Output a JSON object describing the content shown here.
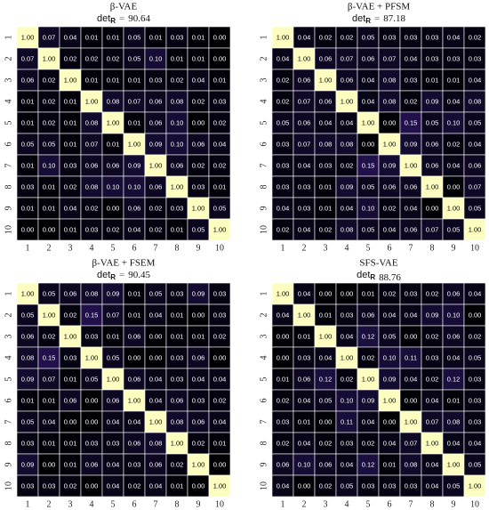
{
  "chart_data": [
    {
      "type": "heatmap",
      "title": "β-VAE",
      "metric_label": "det",
      "metric_subscript": "R",
      "metric_sep": "=",
      "metric_value": 90.64,
      "categories": [
        "1",
        "2",
        "3",
        "4",
        "5",
        "6",
        "7",
        "8",
        "9",
        "10"
      ],
      "colormap": "magma",
      "zlim": [
        0,
        1
      ],
      "values": [
        [
          1.0,
          0.07,
          0.04,
          0.01,
          0.01,
          0.05,
          0.01,
          0.03,
          0.01,
          0.0
        ],
        [
          0.07,
          1.0,
          0.02,
          0.02,
          0.02,
          0.05,
          0.1,
          0.01,
          0.01,
          0.0
        ],
        [
          0.06,
          0.02,
          1.0,
          0.01,
          0.01,
          0.01,
          0.03,
          0.02,
          0.04,
          0.01
        ],
        [
          0.01,
          0.02,
          0.01,
          1.0,
          0.08,
          0.07,
          0.06,
          0.08,
          0.02,
          0.03
        ],
        [
          0.01,
          0.02,
          0.01,
          0.08,
          1.0,
          0.01,
          0.06,
          0.1,
          0.0,
          0.02
        ],
        [
          0.05,
          0.05,
          0.01,
          0.07,
          0.01,
          1.0,
          0.09,
          0.1,
          0.06,
          0.04
        ],
        [
          0.01,
          0.1,
          0.03,
          0.06,
          0.06,
          0.09,
          1.0,
          0.06,
          0.02,
          0.02
        ],
        [
          0.03,
          0.01,
          0.02,
          0.08,
          0.1,
          0.1,
          0.06,
          1.0,
          0.03,
          0.01
        ],
        [
          0.01,
          0.01,
          0.04,
          0.02,
          0.0,
          0.06,
          0.02,
          0.03,
          1.0,
          0.05
        ],
        [
          0.0,
          0.0,
          0.01,
          0.03,
          0.02,
          0.04,
          0.02,
          0.01,
          0.05,
          1.0
        ]
      ],
      "value_labels": [
        [
          "1.00",
          "0.07",
          "0.04",
          "0.01",
          "0.01",
          "0.05",
          "0.01",
          "0.03",
          "0.01",
          "0.00"
        ],
        [
          "0.07",
          "1.00",
          "0.02",
          "0.02",
          "0.02",
          "0.05",
          "0.10",
          "0.01",
          "0.01",
          "0.00"
        ],
        [
          "0.06",
          "0.02",
          "1.00",
          "0.01",
          "0.01",
          "0.01",
          "0.03",
          "0.02",
          "0.04",
          "0.01"
        ],
        [
          "0.01",
          "0.02",
          "0.01",
          "1.00",
          "0.08",
          "0.07",
          "0.06",
          "0.08",
          "0.02",
          "0.03"
        ],
        [
          "0.01",
          "0.02",
          "0.01",
          "0.08",
          "1.00",
          "0.01",
          "0.06",
          "0.10",
          "0.00",
          "0.02"
        ],
        [
          "0.05",
          "0.05",
          "0.01",
          "0.07",
          "0.01",
          "1.00",
          "0.09",
          "0.10",
          "0.06",
          "0.04"
        ],
        [
          "0.01",
          "0.10",
          "0.03",
          "0.06",
          "0.06",
          "0.09",
          "1.00",
          "0.06",
          "0.02",
          "0.02"
        ],
        [
          "0.03",
          "0.01",
          "0.02",
          "0.08",
          "0.10",
          "0.10",
          "0.06",
          "1.00",
          "0.03",
          "0.01"
        ],
        [
          "0.01",
          "0.01",
          "0.04",
          "0.02",
          "0.00",
          "0.06",
          "0.02",
          "0.03",
          "1.00",
          "0.05"
        ],
        [
          "0.00",
          "0.00",
          "0.01",
          "0.03",
          "0.02",
          "0.04",
          "0.02",
          "0.01",
          "0.05",
          "1.00"
        ]
      ]
    },
    {
      "type": "heatmap",
      "title": "β-VAE + PFSM",
      "metric_label": "det",
      "metric_subscript": "R",
      "metric_sep": "=",
      "metric_value": 87.18,
      "categories": [
        "1",
        "2",
        "3",
        "4",
        "5",
        "6",
        "7",
        "8",
        "9",
        "10"
      ],
      "colormap": "magma",
      "zlim": [
        0,
        1
      ],
      "values": [
        [
          1.0,
          0.04,
          0.02,
          0.02,
          0.05,
          0.03,
          0.03,
          0.03,
          0.04,
          0.02
        ],
        [
          0.04,
          1.0,
          0.06,
          0.07,
          0.06,
          0.07,
          0.04,
          0.03,
          0.03,
          0.03
        ],
        [
          0.02,
          0.06,
          1.0,
          0.06,
          0.04,
          0.08,
          0.03,
          0.01,
          0.01,
          0.04
        ],
        [
          0.02,
          0.07,
          0.06,
          1.0,
          0.04,
          0.08,
          0.02,
          0.09,
          0.04,
          0.08
        ],
        [
          0.05,
          0.06,
          0.04,
          0.04,
          1.0,
          0.0,
          0.15,
          0.05,
          0.1,
          0.05
        ],
        [
          0.03,
          0.07,
          0.08,
          0.08,
          0.0,
          1.0,
          0.09,
          0.06,
          0.02,
          0.04
        ],
        [
          0.03,
          0.04,
          0.03,
          0.02,
          0.15,
          0.09,
          1.0,
          0.06,
          0.04,
          0.06
        ],
        [
          0.03,
          0.03,
          0.01,
          0.09,
          0.05,
          0.06,
          0.06,
          1.0,
          0.0,
          0.07
        ],
        [
          0.04,
          0.03,
          0.01,
          0.04,
          0.1,
          0.02,
          0.04,
          0.0,
          1.0,
          0.05
        ],
        [
          0.02,
          0.04,
          0.02,
          0.08,
          0.05,
          0.04,
          0.06,
          0.07,
          0.05,
          1.0
        ]
      ],
      "value_labels": [
        [
          "1.00",
          "0.04",
          "0.02",
          "0.02",
          "0.05",
          "0.03",
          "0.03",
          "0.03",
          "0.04",
          "0.02"
        ],
        [
          "0.04",
          "1.00",
          "0.06",
          "0.07",
          "0.06",
          "0.07",
          "0.04",
          "0.03",
          "0.03",
          "0.03"
        ],
        [
          "0.02",
          "0.06",
          "1.00",
          "0.06",
          "0.04",
          "0.08",
          "0.03",
          "0.01",
          "0.01",
          "0.04"
        ],
        [
          "0.02",
          "0.07",
          "0.06",
          "1.00",
          "0.04",
          "0.08",
          "0.02",
          "0.09",
          "0.04",
          "0.08"
        ],
        [
          "0.05",
          "0.06",
          "0.04",
          "0.04",
          "1.00",
          "0.00",
          "0.15",
          "0.05",
          "0.10",
          "0.05"
        ],
        [
          "0.03",
          "0.07",
          "0.08",
          "0.08",
          "0.00",
          "1.00",
          "0.09",
          "0.06",
          "0.02",
          "0.04"
        ],
        [
          "0.03",
          "0.04",
          "0.03",
          "0.02",
          "0.15",
          "0.09",
          "1.00",
          "0.06",
          "0.04",
          "0.06"
        ],
        [
          "0.03",
          "0.03",
          "0.01",
          "0.09",
          "0.05",
          "0.06",
          "0.06",
          "1.00",
          "0.00",
          "0.07"
        ],
        [
          "0.04",
          "0.03",
          "0.01",
          "0.04",
          "0.10",
          "0.02",
          "0.04",
          "0.00",
          "1.00",
          "0.05"
        ],
        [
          "0.02",
          "0.04",
          "0.02",
          "0.08",
          "0.05",
          "0.04",
          "0.06",
          "0.07",
          "0.05",
          "1.00"
        ]
      ]
    },
    {
      "type": "heatmap",
      "title": "β-VAE + FSEM",
      "metric_label": "det",
      "metric_subscript": "R",
      "metric_sep": "=",
      "metric_value": 90.45,
      "categories": [
        "1",
        "2",
        "3",
        "4",
        "5",
        "6",
        "7",
        "8",
        "9",
        "10"
      ],
      "colormap": "magma",
      "zlim": [
        0,
        1
      ],
      "values": [
        [
          1.0,
          0.05,
          0.06,
          0.08,
          0.09,
          0.01,
          0.05,
          0.03,
          0.09,
          0.03
        ],
        [
          0.05,
          1.0,
          0.02,
          0.15,
          0.07,
          0.01,
          0.04,
          0.01,
          0.0,
          0.03
        ],
        [
          0.06,
          0.02,
          1.0,
          0.03,
          0.01,
          0.06,
          0.0,
          0.01,
          0.01,
          0.02
        ],
        [
          0.08,
          0.15,
          0.03,
          1.0,
          0.05,
          0.0,
          0.0,
          0.03,
          0.06,
          0.0
        ],
        [
          0.09,
          0.07,
          0.01,
          0.05,
          1.0,
          0.06,
          0.04,
          0.03,
          0.04,
          0.04
        ],
        [
          0.01,
          0.01,
          0.06,
          0.0,
          0.06,
          1.0,
          0.04,
          0.06,
          0.03,
          0.02
        ],
        [
          0.05,
          0.04,
          0.0,
          0.0,
          0.04,
          0.04,
          1.0,
          0.08,
          0.06,
          0.04
        ],
        [
          0.03,
          0.01,
          0.01,
          0.03,
          0.03,
          0.06,
          0.08,
          1.0,
          0.02,
          0.01
        ],
        [
          0.09,
          0.0,
          0.01,
          0.06,
          0.04,
          0.03,
          0.06,
          0.02,
          1.0,
          0.0
        ],
        [
          0.03,
          0.03,
          0.02,
          0.0,
          0.04,
          0.02,
          0.04,
          0.01,
          0.0,
          1.0
        ]
      ],
      "value_labels": [
        [
          "1.00",
          "0.05",
          "0.06",
          "0.08",
          "0.09",
          "0.01",
          "0.05",
          "0.03",
          "0.09",
          "0.03"
        ],
        [
          "0.05",
          "1.00",
          "0.02",
          "0.15",
          "0.07",
          "0.01",
          "0.04",
          "0.01",
          "0.00",
          "0.03"
        ],
        [
          "0.06",
          "0.02",
          "1.00",
          "0.03",
          "0.01",
          "0.06",
          "0.00",
          "0.01",
          "0.01",
          "0.02"
        ],
        [
          "0.08",
          "0.15",
          "0.03",
          "1.00",
          "0.05",
          "0.00",
          "0.00",
          "0.03",
          "0.06",
          "0.00"
        ],
        [
          "0.09",
          "0.07",
          "0.01",
          "0.05",
          "1.00",
          "0.06",
          "0.04",
          "0.03",
          "0.04",
          "0.04"
        ],
        [
          "0.01",
          "0.01",
          "0.06",
          "0.00",
          "0.06",
          "1.00",
          "0.04",
          "0.06",
          "0.03",
          "0.02"
        ],
        [
          "0.05",
          "0.04",
          "0.00",
          "0.00",
          "0.04",
          "0.04",
          "1.00",
          "0.08",
          "0.06",
          "0.04"
        ],
        [
          "0.03",
          "0.01",
          "0.01",
          "0.03",
          "0.03",
          "0.06",
          "0.08",
          "1.00",
          "0.02",
          "0.01"
        ],
        [
          "0.09",
          "0.00",
          "0.01",
          "0.06",
          "0.04",
          "0.03",
          "0.06",
          "0.02",
          "1.00",
          "0.00"
        ],
        [
          "0.03",
          "0.03",
          "0.02",
          "0.00",
          "0.04",
          "0.02",
          "0.04",
          "0.01",
          "0.00",
          "1.00"
        ]
      ]
    },
    {
      "type": "heatmap",
      "title": "SFS-VAE",
      "metric_label": "det",
      "metric_subscript": "R",
      "metric_value": 88.76,
      "categories": [
        "1",
        "2",
        "3",
        "4",
        "5",
        "6",
        "7",
        "8",
        "9",
        "10"
      ],
      "colormap": "magma",
      "zlim": [
        0,
        1
      ],
      "values": [
        [
          1.0,
          0.04,
          0.0,
          0.0,
          0.01,
          0.02,
          0.03,
          0.02,
          0.06,
          0.04
        ],
        [
          0.04,
          1.0,
          0.01,
          0.03,
          0.06,
          0.04,
          0.04,
          0.09,
          0.1,
          0.0
        ],
        [
          0.0,
          0.01,
          1.0,
          0.04,
          0.12,
          0.05,
          0.0,
          0.02,
          0.06,
          0.02
        ],
        [
          0.0,
          0.03,
          0.04,
          1.0,
          0.02,
          0.1,
          0.11,
          0.03,
          0.04,
          0.05
        ],
        [
          0.01,
          0.06,
          0.12,
          0.02,
          1.0,
          0.09,
          0.04,
          0.02,
          0.12,
          0.03
        ],
        [
          0.02,
          0.04,
          0.05,
          0.1,
          0.09,
          1.0,
          0.0,
          0.04,
          0.01,
          0.03
        ],
        [
          0.03,
          0.01,
          0.0,
          0.11,
          0.04,
          0.0,
          1.0,
          0.07,
          0.08,
          0.03
        ],
        [
          0.02,
          0.04,
          0.02,
          0.03,
          0.02,
          0.04,
          0.07,
          1.0,
          0.04,
          0.04
        ],
        [
          0.06,
          0.1,
          0.06,
          0.04,
          0.12,
          0.01,
          0.08,
          0.04,
          1.0,
          0.05
        ],
        [
          0.04,
          0.0,
          0.02,
          0.05,
          0.03,
          0.03,
          0.03,
          0.04,
          0.05,
          1.0
        ]
      ],
      "value_labels": [
        [
          "1.00",
          "0.04",
          "0.00",
          "0.00",
          "0.01",
          "0.02",
          "0.03",
          "0.02",
          "0.06",
          "0.04"
        ],
        [
          "0.04",
          "1.00",
          "0.01",
          "0.03",
          "0.06",
          "0.04",
          "0.04",
          "0.09",
          "0.10",
          "0.00"
        ],
        [
          "0.00",
          "0.01",
          "1.00",
          "0.04",
          "0.12",
          "0.05",
          "0.00",
          "0.02",
          "0.06",
          "0.02"
        ],
        [
          "0.00",
          "0.03",
          "0.04",
          "1.00",
          "0.02",
          "0.10",
          "0.11",
          "0.03",
          "0.04",
          "0.05"
        ],
        [
          "0.01",
          "0.06",
          "0.12",
          "0.02",
          "1.00",
          "0.09",
          "0.04",
          "0.02",
          "0.12",
          "0.03"
        ],
        [
          "0.02",
          "0.04",
          "0.05",
          "0.10",
          "0.09",
          "1.00",
          "0.00",
          "0.04",
          "0.01",
          "0.03"
        ],
        [
          "0.03",
          "0.01",
          "0.00",
          "0.11",
          "0.04",
          "0.00",
          "1.00",
          "0.07",
          "0.08",
          "0.03"
        ],
        [
          "0.02",
          "0.04",
          "0.02",
          "0.03",
          "0.02",
          "0.04",
          "0.07",
          "1.00",
          "0.04",
          "0.04"
        ],
        [
          "0.06",
          "0.10",
          "0.06",
          "0.04",
          "0.12",
          "0.01",
          "0.08",
          "0.04",
          "1.00",
          "0.05"
        ],
        [
          "0.04",
          "0.00",
          "0.02",
          "0.05",
          "0.03",
          "0.03",
          "0.03",
          "0.04",
          "0.05",
          "1.00"
        ]
      ]
    }
  ]
}
